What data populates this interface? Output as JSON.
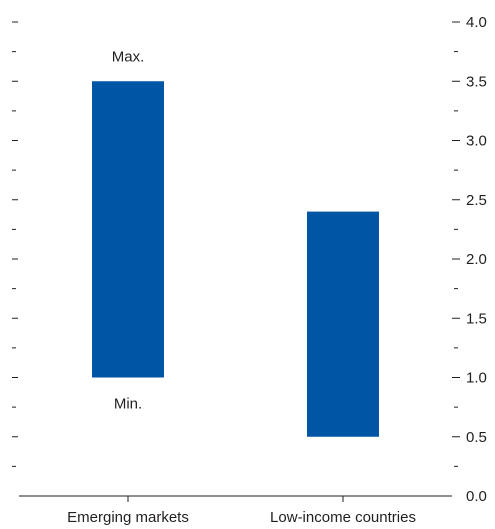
{
  "chart_data": {
    "type": "bar",
    "subtype": "floating-range",
    "categories": [
      "Emerging markets",
      "Low-income countries"
    ],
    "series": [
      {
        "ranges": [
          {
            "min": 1.0,
            "max": 3.5
          },
          {
            "min": 0.5,
            "max": 2.4
          }
        ]
      }
    ],
    "bar_color": "#0055a5",
    "ylim": [
      0,
      4.0
    ],
    "y_major_ticks": [
      "0.0",
      "0.5",
      "1.0",
      "1.5",
      "2.0",
      "2.5",
      "3.0",
      "3.5",
      "4.0"
    ],
    "y_minor_step": 0.25,
    "y_axis_position": "right",
    "grid": false,
    "legend": null,
    "annotations": {
      "max_label": "Max.",
      "min_label": "Min."
    }
  }
}
